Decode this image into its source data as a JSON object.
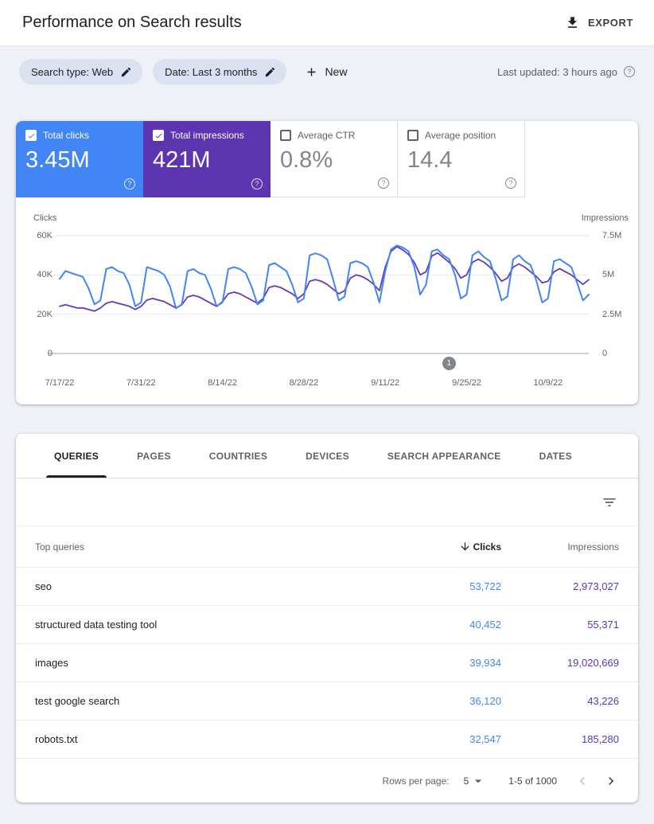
{
  "header": {
    "title": "Performance on Search results",
    "export_label": "EXPORT"
  },
  "filter_bar": {
    "chips": [
      {
        "label": "Search type: Web"
      },
      {
        "label": "Date: Last 3 months"
      }
    ],
    "new_button": "New",
    "last_updated": "Last updated: 3 hours ago"
  },
  "metrics": {
    "tiles": [
      {
        "label": "Total clicks",
        "value": "3.45M",
        "selected": true,
        "color": "#4285f4"
      },
      {
        "label": "Total impressions",
        "value": "421M",
        "selected": true,
        "color": "#5e35b1"
      },
      {
        "label": "Average CTR",
        "value": "0.8%",
        "selected": false
      },
      {
        "label": "Average position",
        "value": "14.4",
        "selected": false
      }
    ]
  },
  "chart_data": {
    "type": "line",
    "x_tick_labels": [
      "7/17/22",
      "7/31/22",
      "8/14/22",
      "8/28/22",
      "9/11/22",
      "9/25/22",
      "10/9/22"
    ],
    "x_tick_interval_days": 14,
    "total_days": 91,
    "left_axis": {
      "title": "Clicks",
      "max": 60000,
      "tick_labels": [
        "60K",
        "40K",
        "20K",
        "0"
      ]
    },
    "right_axis": {
      "title": "Impressions",
      "max": 7500000,
      "tick_labels": [
        "7.5M",
        "5M",
        "2.5M",
        "0"
      ]
    },
    "annotation": {
      "label": "1",
      "x_frac": 0.736
    },
    "series": [
      {
        "name": "Total clicks",
        "axis": "left",
        "color": "#4285f4",
        "values": [
          38000,
          42000,
          41000,
          40000,
          39000,
          33000,
          25000,
          27000,
          43000,
          44000,
          42000,
          41000,
          35000,
          24000,
          26000,
          44000,
          43000,
          42000,
          40000,
          34000,
          23000,
          25000,
          42000,
          43000,
          41000,
          40000,
          33000,
          24000,
          26000,
          43000,
          44000,
          43000,
          41000,
          34000,
          25000,
          27000,
          45000,
          46000,
          44000,
          42000,
          35000,
          26000,
          28000,
          50000,
          51000,
          50000,
          48000,
          38000,
          27000,
          29000,
          46000,
          47000,
          46000,
          44000,
          36000,
          26000,
          42000,
          53000,
          55000,
          54000,
          52000,
          44000,
          30000,
          35000,
          52000,
          53000,
          50000,
          48000,
          40000,
          28000,
          30000,
          50000,
          52000,
          49000,
          47000,
          38000,
          27000,
          29000,
          48000,
          50000,
          47000,
          45000,
          37000,
          26000,
          28000,
          47000,
          48000,
          46000,
          44000,
          36000,
          27000,
          30000
        ]
      },
      {
        "name": "Total impressions",
        "axis": "right",
        "color": "#673ab7",
        "values": [
          3000000,
          3100000,
          3000000,
          2900000,
          2900000,
          2800000,
          2700000,
          2900000,
          3200000,
          3300000,
          3200000,
          3100000,
          3000000,
          2800000,
          3000000,
          3400000,
          3500000,
          3400000,
          3300000,
          3100000,
          2900000,
          3100000,
          3600000,
          3700000,
          3600000,
          3400000,
          3200000,
          3000000,
          3300000,
          3800000,
          3900000,
          3800000,
          3600000,
          3400000,
          3200000,
          3500000,
          4200000,
          4300000,
          4200000,
          4000000,
          3800000,
          3500000,
          3800000,
          4600000,
          4700000,
          4600000,
          4400000,
          4100000,
          3800000,
          4000000,
          4800000,
          5000000,
          4900000,
          4700000,
          4400000,
          4000000,
          5500000,
          6500000,
          6800000,
          6600000,
          6300000,
          5800000,
          5000000,
          5200000,
          6200000,
          6400000,
          6100000,
          5800000,
          5400000,
          4800000,
          5000000,
          5800000,
          6000000,
          5800000,
          5500000,
          5100000,
          4600000,
          4800000,
          5500000,
          5700000,
          5500000,
          5200000,
          4900000,
          4500000,
          4600000,
          5200000,
          5400000,
          5200000,
          5000000,
          4700000,
          4400000,
          4700000
        ]
      }
    ]
  },
  "table": {
    "tabs": [
      "QUERIES",
      "PAGES",
      "COUNTRIES",
      "DEVICES",
      "SEARCH APPEARANCE",
      "DATES"
    ],
    "active_tab": "QUERIES",
    "header": {
      "query": "Top queries",
      "clicks": "Clicks",
      "impressions": "Impressions"
    },
    "rows": [
      {
        "query": "seo",
        "clicks": "53,722",
        "impressions": "2,973,027"
      },
      {
        "query": "structured data testing tool",
        "clicks": "40,452",
        "impressions": "55,371"
      },
      {
        "query": "images",
        "clicks": "39,934",
        "impressions": "19,020,669"
      },
      {
        "query": "test google search",
        "clicks": "36,120",
        "impressions": "43,226"
      },
      {
        "query": "robots.txt",
        "clicks": "32,547",
        "impressions": "185,280"
      }
    ],
    "pagination": {
      "rows_per_page_label": "Rows per page:",
      "rows_per_page": "5",
      "range": "1-5 of 1000"
    }
  }
}
